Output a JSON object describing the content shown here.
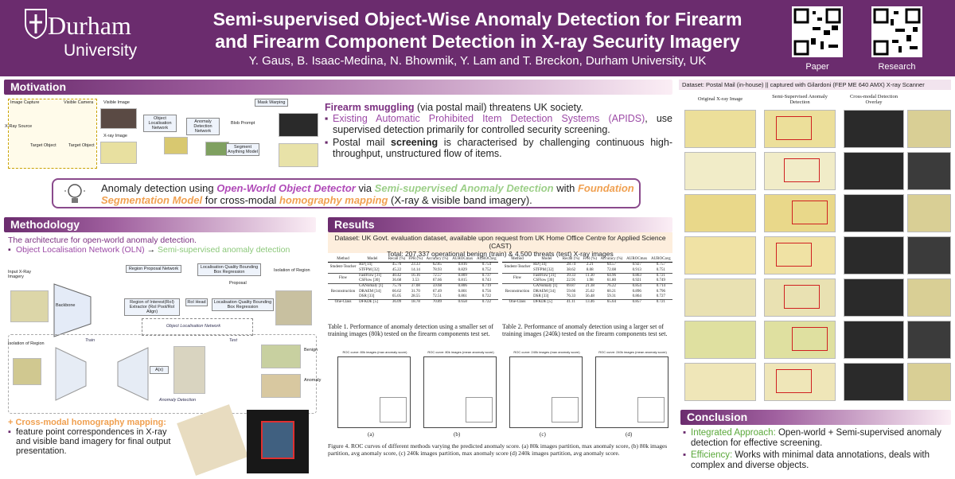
{
  "header": {
    "logo_name": "Durham",
    "logo_sub": "University",
    "title_line1": "Semi-supervised Object-Wise Anomaly Detection for Firearm",
    "title_line2": "and Firearm Component Detection in X-ray Security Imagery",
    "authors": "Y. Gaus, B. Isaac-Medina, N. Bhowmik, Y. Lam and T. Breckon, Durham University, UK",
    "qr_labels": [
      "Paper",
      "Research"
    ]
  },
  "motivation": {
    "heading": "Motivation",
    "diagram_labels": [
      "Image Capture",
      "X-Ray Source",
      "Visible Camera",
      "Target Object",
      "Target Object",
      "Visible Image",
      "X-ray Image",
      "Object Localisation Network",
      "Anomaly Detection Network",
      "Blob Prompt",
      "Mask Warping",
      "Segment Anything Model"
    ],
    "bullets": [
      [
        "Firearm smuggling",
        " (via postal mail) threatens UK society."
      ],
      [
        "Existing Automatic Prohibited Item Detection Systems (APIDS)",
        ", use supervised detection primarily for controlled security screening."
      ],
      [
        "Postal mail ",
        "screening",
        " is characterised by challenging continuous high-throughput, unstructured flow of items."
      ]
    ]
  },
  "idea": [
    "Anomaly detection using ",
    "Open-World Object Detector",
    " via ",
    "Semi-supervised Anomaly Detection",
    " with ",
    "Foundation Segmentation Model",
    " for cross-modal ",
    "homography mapping",
    " (X-ray & visible band imagery)."
  ],
  "methodology": {
    "heading": "Methodology",
    "intro": "The architecture for open-world anomaly detection.",
    "pipeline": [
      "Object Localisation Network (OLN)",
      "→",
      "Semi-supervised anomaly detection"
    ],
    "diagram_labels": [
      "Input X-Ray Imagery",
      "Backbone",
      "Region Proposal Network",
      "Localisation Quality Bounding Box Regression",
      "Proposal",
      "Region of Interest(RoI) Extractor (RoI Pool/RoI Align)",
      "RoI Head",
      "Localisation Quality Bounding Box Regression",
      "Object Localisation Network",
      "Isolation of Region",
      "Isolation of Region",
      "Train",
      "Test",
      "A(x)",
      "Anomaly Detection",
      "Benign",
      "Anomaly"
    ],
    "homography_title": "+ Cross-modal homography mapping:",
    "homography_text": "feature point correspondences in X-ray and visible band imagery for final output presentation."
  },
  "results": {
    "heading": "Results",
    "dataset": "Dataset: UK Govt. evaluation dataset, available upon request from UK Home Office Centre for Applied Science (CAST)",
    "total": "Total: 207,337 operational benign (train) & 4,500 threats (test) X-ray images",
    "columns": [
      "Method",
      "Model",
      "Recall (%)",
      "FPR (%)",
      "Accuracy (%)",
      "AUROCmax",
      "AUROCavg"
    ],
    "tables": [
      {
        "caption": "Table 1. Performance of anomaly detection using a smaller set of training images (80k) tested on the firearm components test set.",
        "groups": [
          {
            "method": "Student-Teacher",
            "rows": [
              [
                "RD [14]",
                "45.76",
                "23.33",
                "62.85",
                "0.816",
                "0.754"
              ],
              [
                "STFPM [32]",
                "45.22",
                "14.14",
                "78.93",
                "0.829",
                "0.752"
              ]
            ]
          },
          {
            "method": "Flow",
            "rows": [
              [
                "FastFlow [31]",
                "40.42",
                "16.16",
                "72.57",
                "0.809",
                "0.737"
              ],
              [
                "CSFlow [30]",
                "36.68",
                "3.53",
                "67.66",
                "0.815",
                "0.743"
              ]
            ]
          },
          {
            "method": "Reconstruction",
            "rows": [
              [
                "GANomaly [1]",
                "75.76",
                "37.08",
                "59.68",
                "0.806",
                "0.719"
              ],
              [
                "DRAEM [34]",
                "66.62",
                "31.70",
                "67.49",
                "0.801",
                "0.756"
              ],
              [
                "DSR [33]",
                "65.05",
                "28.55",
                "72.51",
                "0.861",
                "0.722"
              ]
            ]
          },
          {
            "method": "One-Class",
            "rows": [
              [
                "DFKDE [5]",
                "36.09",
                "18.78",
                "70.89",
                "0.658",
                "0.722"
              ]
            ]
          }
        ]
      },
      {
        "caption": "Table 2. Performance of anomaly detection using a larger set of training images (240k) tested on the firearm components test set.",
        "groups": [
          {
            "method": "Student-Teacher",
            "rows": [
              [
                "RD [14]",
                "28.74",
                "2.21",
                "64.57",
                "0.927",
                "0.757"
              ],
              [
                "STFPM [32]",
                "38.62",
                "8.08",
                "72.08",
                "0.913",
                "0.751"
              ]
            ]
          },
          {
            "method": "Flow",
            "rows": [
              [
                "FastFlow [31]",
                "39.33",
                "11.30",
                "64.96",
                "0.863",
                "0.721"
              ],
              [
                "CSFlow [30]",
                "22.91",
                "1.98",
                "61.80",
                "0.921",
                "0.749"
              ]
            ]
          },
          {
            "method": "Reconstruction",
            "rows": [
              [
                "GANomaly [1]",
                "69.87",
                "21.38",
                "76.22",
                "0.854",
                "0.714"
              ],
              [
                "DRAEM [34]",
                "59.66",
                "25.62",
                "60.21",
                "0.896",
                "0.796"
              ],
              [
                "DSR [33]",
                "76.33",
                "56.48",
                "59.31",
                "0.864",
                "0.727"
              ]
            ]
          },
          {
            "method": "One-Class",
            "rows": [
              [
                "DFKDE [5]",
                "41.11",
                "13.46",
                "65.64",
                "0.857",
                "0.721"
              ]
            ]
          }
        ]
      }
    ],
    "roc_titles": [
      "ROC curve: 80k images (max anomaly score)",
      "ROC curve: 80k images (mean anomaly score)",
      "ROC curve: 240k images (max anomaly score)",
      "ROC curve: 240k images (mean anomaly score)"
    ],
    "roc_labels": [
      "(a)",
      "(b)",
      "(c)",
      "(d)"
    ],
    "figure_caption": "Figure 4. ROC curves of different methods varying the predicted anomaly score. (a) 80k images partition, max anomaly score, (b) 80k images partition, avg anomaly score, (c) 240k images partition, max anomaly score (d) 240k images partition, avg anomaly score."
  },
  "examples": {
    "dataset": "Dataset: Postal Mail (in-house) || captured with Gilardoni (FEP ME 640 AMX) X-ray Scanner",
    "column_headers": [
      "Original X-ray Image",
      "Semi-Supervised Anomaly Detection",
      "Cross-modal Detection Overlay"
    ]
  },
  "conclusion": {
    "heading": "Conclusion",
    "bullets": [
      [
        "Integrated Approach:",
        " Open-world + Semi-supervised anomaly detection for effective screening."
      ],
      [
        "Efficiency:",
        " Works with minimal data annotations, deals with complex and diverse objects."
      ]
    ]
  }
}
